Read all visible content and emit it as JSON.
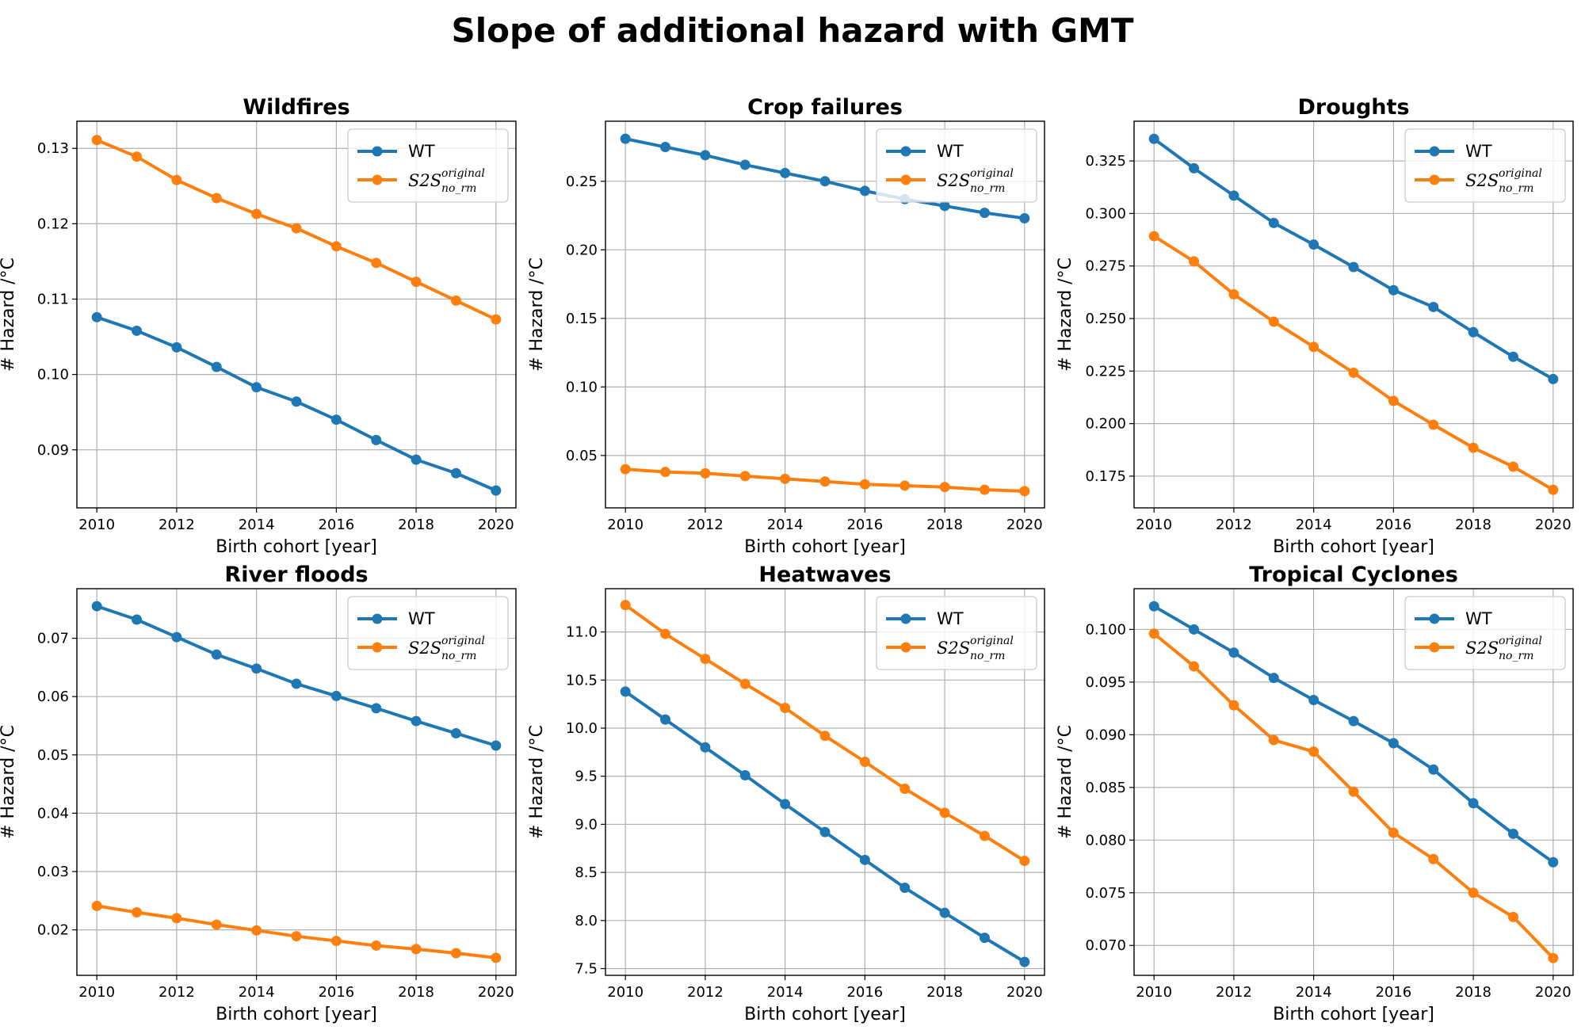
{
  "suptitle": "Slope of additional hazard with GMT",
  "colors": {
    "WT": "#1f77b4",
    "S2S": "#ff7f0e",
    "grid": "#b0b0b0"
  },
  "chart_data": [
    {
      "type": "line",
      "title": "Wildfires",
      "xlabel": "Birth cohort [year]",
      "ylabel": "# Hazard /°C",
      "x": [
        2010,
        2011,
        2012,
        2013,
        2014,
        2015,
        2016,
        2017,
        2018,
        2019,
        2020
      ],
      "xticks": [
        2010,
        2012,
        2014,
        2016,
        2018,
        2020
      ],
      "ylim": [
        0.0823,
        0.1336
      ],
      "yticks": [
        0.09,
        0.1,
        0.11,
        0.12,
        0.13
      ],
      "ytick_labels": [
        "0.09",
        "0.10",
        "0.11",
        "0.12",
        "0.13"
      ],
      "grid": true,
      "legend": "upper right",
      "series": [
        {
          "name": "WT",
          "color": "#1f77b4",
          "values": [
            0.1076,
            0.1058,
            0.1036,
            0.101,
            0.0983,
            0.0964,
            0.094,
            0.0913,
            0.0887,
            0.0869,
            0.0846
          ]
        },
        {
          "name": "S2S_original_no_rm",
          "color": "#ff7f0e",
          "values": [
            0.1311,
            0.1289,
            0.1258,
            0.1234,
            0.1213,
            0.1194,
            0.117,
            0.1148,
            0.1123,
            0.1098,
            0.1073
          ]
        }
      ]
    },
    {
      "type": "line",
      "title": "Crop failures",
      "xlabel": "Birth cohort [year]",
      "ylabel": "# Hazard /°C",
      "x": [
        2010,
        2011,
        2012,
        2013,
        2014,
        2015,
        2016,
        2017,
        2018,
        2019,
        2020
      ],
      "xticks": [
        2010,
        2012,
        2014,
        2016,
        2018,
        2020
      ],
      "ylim": [
        0.0118,
        0.2938
      ],
      "yticks": [
        0.05,
        0.1,
        0.15,
        0.2,
        0.25
      ],
      "ytick_labels": [
        "0.05",
        "0.10",
        "0.15",
        "0.20",
        "0.25"
      ],
      "grid": true,
      "legend": "upper right",
      "series": [
        {
          "name": "WT",
          "color": "#1f77b4",
          "values": [
            0.281,
            0.275,
            0.269,
            0.262,
            0.256,
            0.25,
            0.243,
            0.237,
            0.232,
            0.227,
            0.223
          ]
        },
        {
          "name": "S2S_original_no_rm",
          "color": "#ff7f0e",
          "values": [
            0.04,
            0.038,
            0.037,
            0.035,
            0.033,
            0.031,
            0.029,
            0.028,
            0.027,
            0.025,
            0.024
          ]
        }
      ]
    },
    {
      "type": "line",
      "title": "Droughts",
      "xlabel": "Birth cohort [year]",
      "ylabel": "# Hazard /°C",
      "x": [
        2010,
        2011,
        2012,
        2013,
        2014,
        2015,
        2016,
        2017,
        2018,
        2019,
        2020
      ],
      "xticks": [
        2010,
        2012,
        2014,
        2016,
        2018,
        2020
      ],
      "ylim": [
        0.1599,
        0.3439
      ],
      "yticks": [
        0.175,
        0.2,
        0.225,
        0.25,
        0.275,
        0.3,
        0.325
      ],
      "ytick_labels": [
        "0.175",
        "0.200",
        "0.225",
        "0.250",
        "0.275",
        "0.300",
        "0.325"
      ],
      "grid": true,
      "legend": "upper right",
      "series": [
        {
          "name": "WT",
          "color": "#1f77b4",
          "values": [
            0.3355,
            0.3215,
            0.3085,
            0.2955,
            0.2852,
            0.2745,
            0.2635,
            0.2555,
            0.2435,
            0.2318,
            0.2212
          ]
        },
        {
          "name": "S2S_original_no_rm",
          "color": "#ff7f0e",
          "values": [
            0.2892,
            0.2772,
            0.2615,
            0.2485,
            0.2365,
            0.2242,
            0.2108,
            0.1995,
            0.1885,
            0.1795,
            0.1685
          ]
        }
      ]
    },
    {
      "type": "line",
      "title": "River floods",
      "xlabel": "Birth cohort [year]",
      "ylabel": "# Hazard /°C",
      "x": [
        2010,
        2011,
        2012,
        2013,
        2014,
        2015,
        2016,
        2017,
        2018,
        2019,
        2020
      ],
      "xticks": [
        2010,
        2012,
        2014,
        2016,
        2018,
        2020
      ],
      "ylim": [
        0.0122,
        0.0785
      ],
      "yticks": [
        0.02,
        0.03,
        0.04,
        0.05,
        0.06,
        0.07
      ],
      "ytick_labels": [
        "0.02",
        "0.03",
        "0.04",
        "0.05",
        "0.06",
        "0.07"
      ],
      "grid": true,
      "legend": "upper right",
      "series": [
        {
          "name": "WT",
          "color": "#1f77b4",
          "values": [
            0.0755,
            0.0732,
            0.0702,
            0.0672,
            0.0648,
            0.0622,
            0.0601,
            0.058,
            0.0558,
            0.0537,
            0.0516
          ]
        },
        {
          "name": "S2S_original_no_rm",
          "color": "#ff7f0e",
          "values": [
            0.0241,
            0.023,
            0.022,
            0.0209,
            0.0199,
            0.0189,
            0.0181,
            0.0173,
            0.0167,
            0.016,
            0.0152
          ]
        }
      ]
    },
    {
      "type": "line",
      "title": "Heatwaves",
      "xlabel": "Birth cohort [year]",
      "ylabel": "# Hazard /°C",
      "x": [
        2010,
        2011,
        2012,
        2013,
        2014,
        2015,
        2016,
        2017,
        2018,
        2019,
        2020
      ],
      "xticks": [
        2010,
        2012,
        2014,
        2016,
        2018,
        2020
      ],
      "ylim": [
        7.43,
        11.45
      ],
      "yticks": [
        7.5,
        8.0,
        8.5,
        9.0,
        9.5,
        10.0,
        10.5,
        11.0
      ],
      "ytick_labels": [
        "7.5",
        "8.0",
        "8.5",
        "9.0",
        "9.5",
        "10.0",
        "10.5",
        "11.0"
      ],
      "grid": true,
      "legend": "upper right",
      "series": [
        {
          "name": "WT",
          "color": "#1f77b4",
          "values": [
            10.38,
            10.09,
            9.8,
            9.51,
            9.21,
            8.92,
            8.63,
            8.34,
            8.08,
            7.82,
            7.57
          ]
        },
        {
          "name": "S2S_original_no_rm",
          "color": "#ff7f0e",
          "values": [
            11.28,
            10.98,
            10.72,
            10.46,
            10.21,
            9.92,
            9.65,
            9.37,
            9.12,
            8.88,
            8.62
          ]
        }
      ]
    },
    {
      "type": "line",
      "title": "Tropical Cyclones",
      "xlabel": "Birth cohort [year]",
      "ylabel": "# Hazard /°C",
      "x": [
        2010,
        2011,
        2012,
        2013,
        2014,
        2015,
        2016,
        2017,
        2018,
        2019,
        2020
      ],
      "xticks": [
        2010,
        2012,
        2014,
        2016,
        2018,
        2020
      ],
      "ylim": [
        0.06716,
        0.10387
      ],
      "yticks": [
        0.07,
        0.075,
        0.08,
        0.085,
        0.09,
        0.095,
        0.1
      ],
      "ytick_labels": [
        "0.070",
        "0.075",
        "0.080",
        "0.085",
        "0.090",
        "0.095",
        "0.100"
      ],
      "grid": true,
      "legend": "upper right",
      "series": [
        {
          "name": "WT",
          "color": "#1f77b4",
          "values": [
            0.1022,
            0.1,
            0.0978,
            0.0954,
            0.0933,
            0.0913,
            0.0892,
            0.0867,
            0.0835,
            0.0806,
            0.0779
          ]
        },
        {
          "name": "S2S_original_no_rm",
          "color": "#ff7f0e",
          "values": [
            0.0996,
            0.0965,
            0.0928,
            0.0895,
            0.0884,
            0.0846,
            0.0807,
            0.0782,
            0.075,
            0.0727,
            0.0688
          ]
        }
      ]
    }
  ],
  "legend_text": {
    "wt": "WT",
    "s2s_base": "S2S",
    "s2s_sup": "original",
    "s2s_sub": "no_rm"
  }
}
